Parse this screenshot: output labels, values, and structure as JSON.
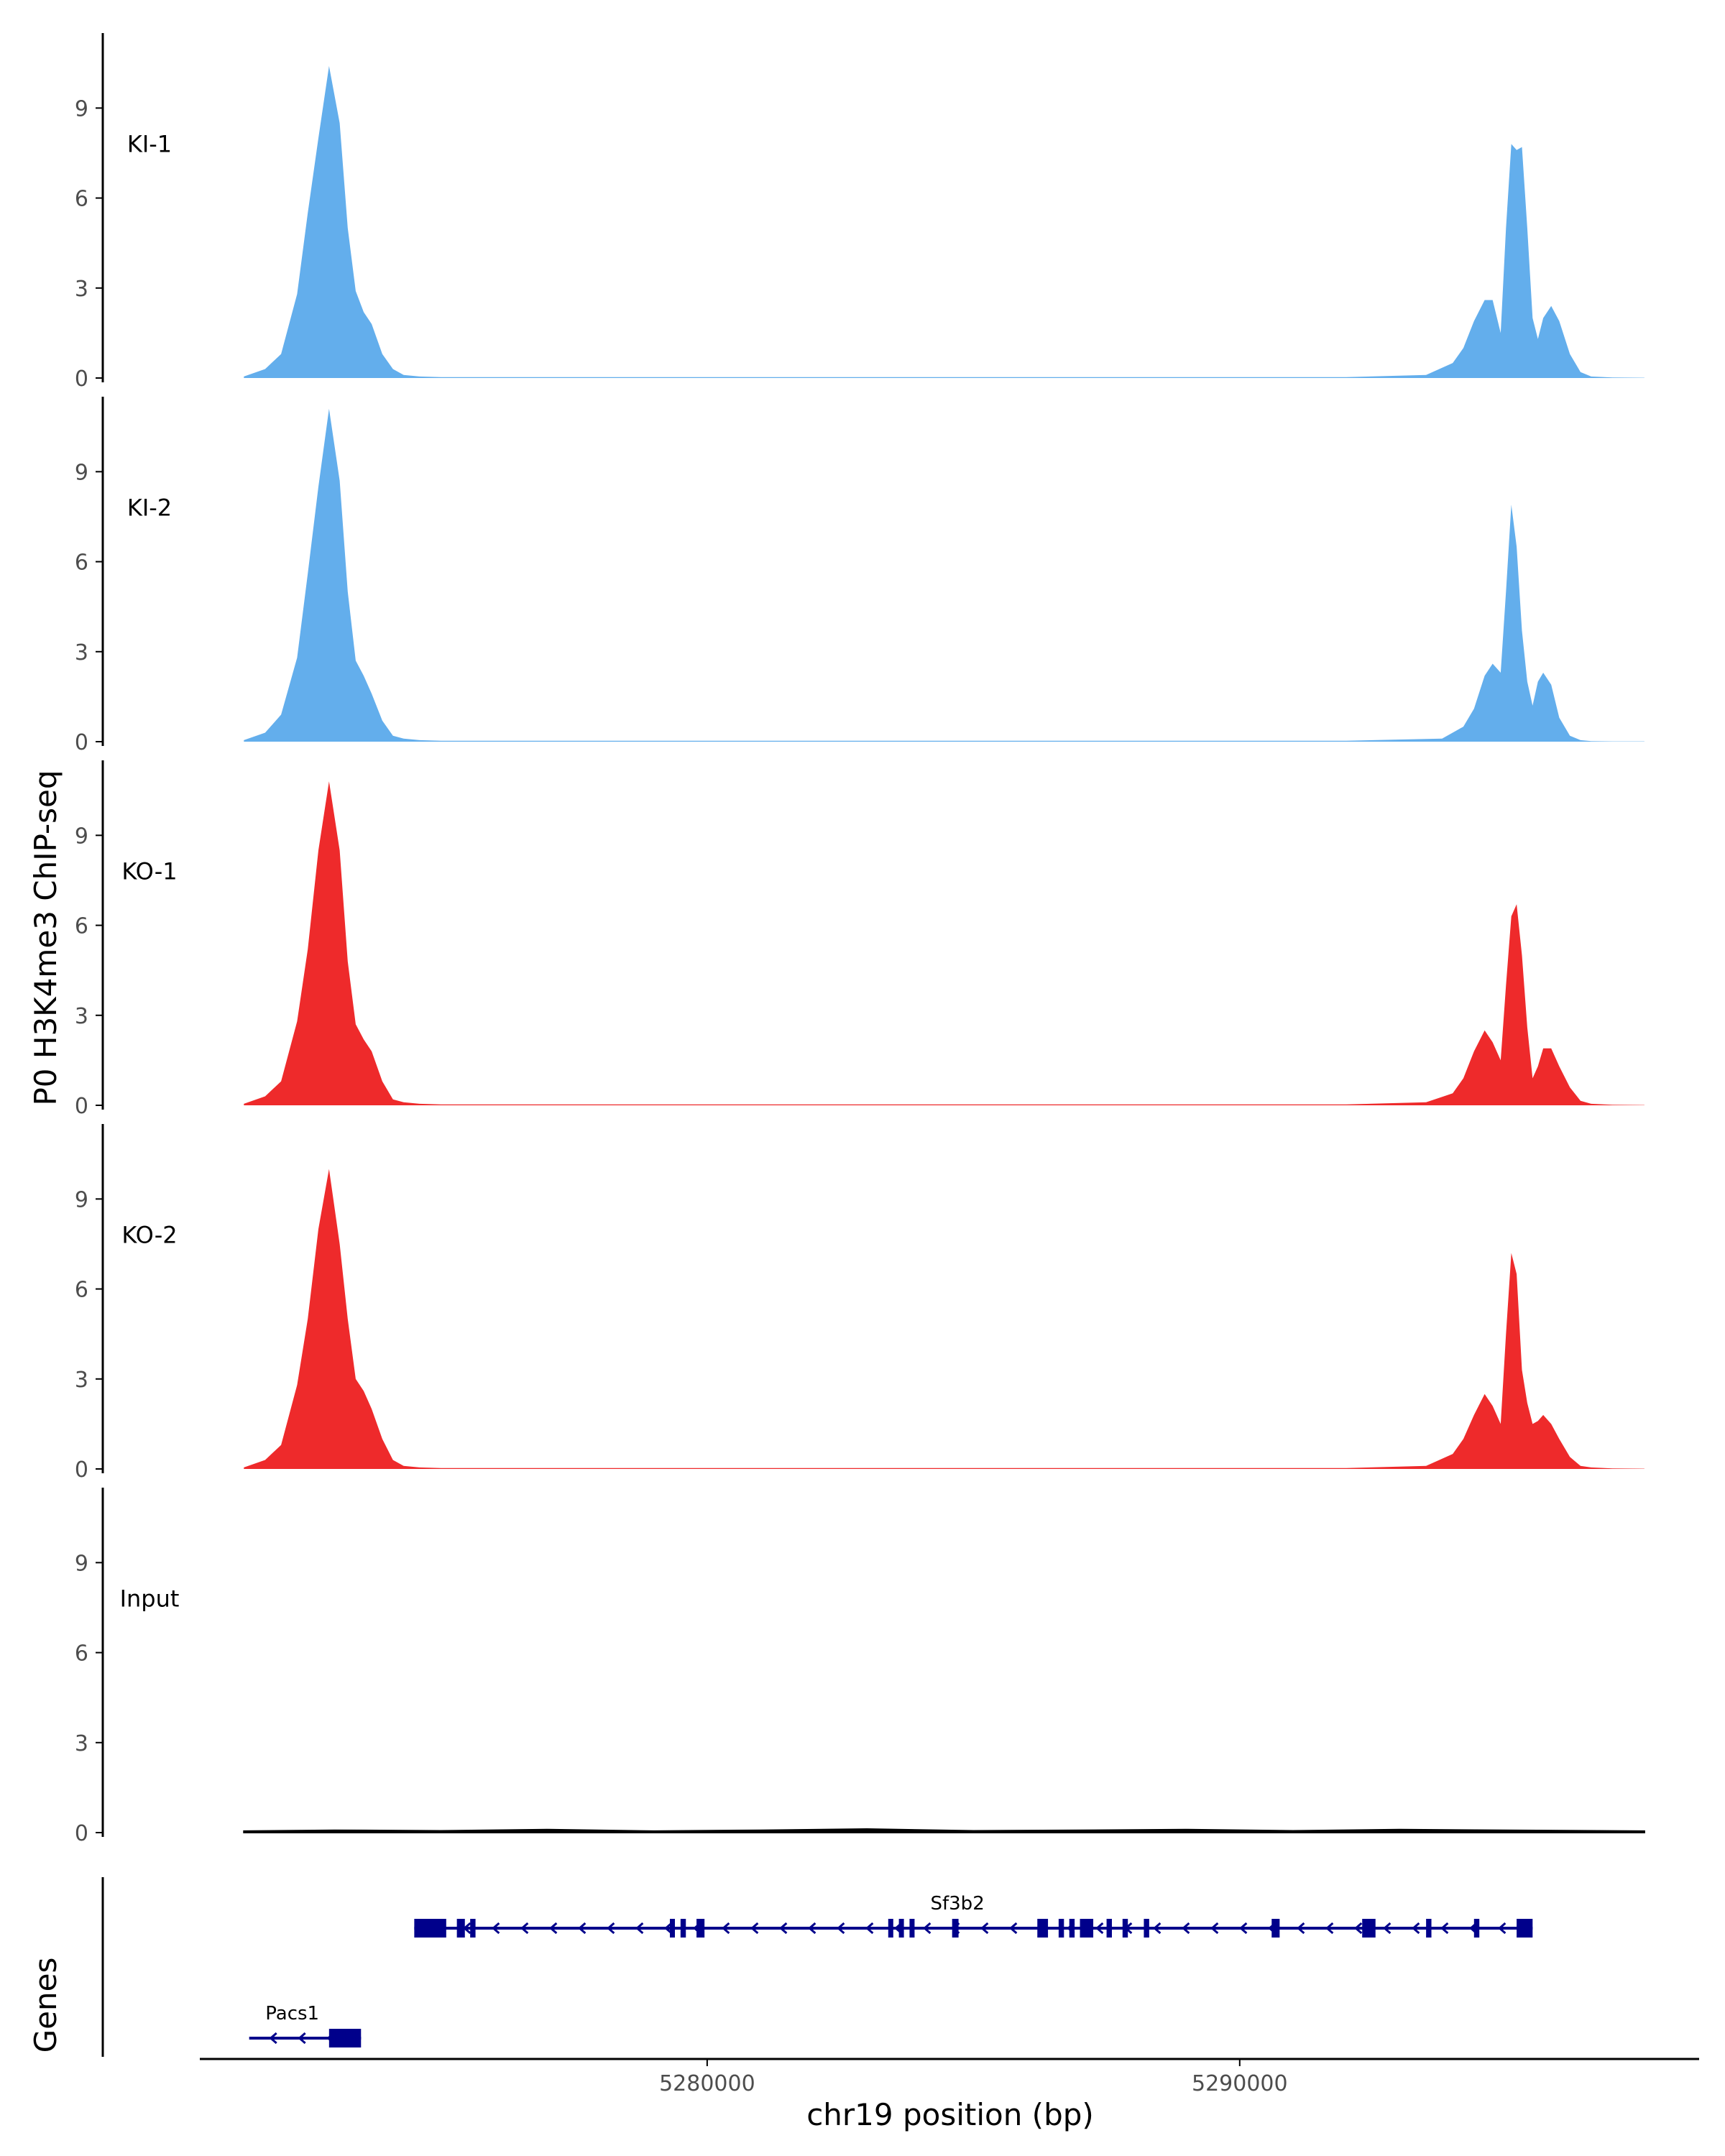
{
  "chart_data": {
    "type": "area",
    "title": "",
    "ylabel": "P0 H3K4me3 ChIP-seq",
    "genes_label": "Genes",
    "xlabel": "chr19 position (bp)",
    "xlim": [
      5270500,
      5298600
    ],
    "x_ticks": [
      {
        "value": 5280000,
        "label": "5280000"
      },
      {
        "value": 5290000,
        "label": "5290000"
      }
    ],
    "ylim": [
      0,
      11.5
    ],
    "y_ticks": [
      {
        "value": 0,
        "label": "0"
      },
      {
        "value": 3,
        "label": "3"
      },
      {
        "value": 6,
        "label": "6"
      },
      {
        "value": 9,
        "label": "9"
      }
    ],
    "colors": {
      "KI": "#63aeec",
      "KO": "#ee2a2b",
      "Input": "#000000",
      "gene": "#00008b",
      "axis": "#000000",
      "tick_text": "#4d4d4d"
    },
    "series": [
      {
        "name": "KI-1",
        "color": "#63aeec",
        "x": [
          5271300,
          5271700,
          5272000,
          5272300,
          5272500,
          5272700,
          5272900,
          5273100,
          5273250,
          5273400,
          5273550,
          5273700,
          5273900,
          5274100,
          5274300,
          5274600,
          5275000,
          5276000,
          5278000,
          5280000,
          5283000,
          5286000,
          5289000,
          5292000,
          5293500,
          5294000,
          5294200,
          5294400,
          5294600,
          5294750,
          5294900,
          5295000,
          5295100,
          5295200,
          5295300,
          5295400,
          5295500,
          5295600,
          5295700,
          5295850,
          5296000,
          5296200,
          5296400,
          5296600,
          5297000,
          5297600
        ],
        "y": [
          0.05,
          0.3,
          0.8,
          2.8,
          5.5,
          8.0,
          10.4,
          8.5,
          5.0,
          2.9,
          2.2,
          1.8,
          0.8,
          0.3,
          0.1,
          0.05,
          0.03,
          0.03,
          0.03,
          0.03,
          0.03,
          0.03,
          0.03,
          0.03,
          0.1,
          0.5,
          1.0,
          1.9,
          2.6,
          2.6,
          1.5,
          5.0,
          7.8,
          7.6,
          7.7,
          5.0,
          2.0,
          1.3,
          2.0,
          2.4,
          1.9,
          0.8,
          0.2,
          0.05,
          0.02,
          0.01
        ]
      },
      {
        "name": "KI-2",
        "color": "#63aeec",
        "x": [
          5271300,
          5271700,
          5272000,
          5272300,
          5272500,
          5272700,
          5272900,
          5273100,
          5273250,
          5273400,
          5273550,
          5273700,
          5273900,
          5274100,
          5274300,
          5274600,
          5275000,
          5276000,
          5278000,
          5280000,
          5283000,
          5286000,
          5289000,
          5292000,
          5293800,
          5294200,
          5294400,
          5294600,
          5294750,
          5294900,
          5295000,
          5295100,
          5295200,
          5295300,
          5295400,
          5295500,
          5295600,
          5295700,
          5295850,
          5296000,
          5296200,
          5296400,
          5296600,
          5297000,
          5297600
        ],
        "y": [
          0.05,
          0.3,
          0.9,
          2.8,
          5.6,
          8.5,
          11.1,
          8.7,
          5.0,
          2.7,
          2.2,
          1.6,
          0.7,
          0.2,
          0.1,
          0.05,
          0.03,
          0.03,
          0.03,
          0.03,
          0.03,
          0.03,
          0.03,
          0.03,
          0.1,
          0.5,
          1.1,
          2.2,
          2.6,
          2.3,
          5.0,
          7.9,
          6.5,
          3.7,
          2.0,
          1.2,
          2.0,
          2.3,
          1.9,
          0.8,
          0.2,
          0.05,
          0.02,
          0.01,
          0.01
        ]
      },
      {
        "name": "KO-1",
        "color": "#ee2a2b",
        "x": [
          5271300,
          5271700,
          5272000,
          5272300,
          5272500,
          5272700,
          5272900,
          5273100,
          5273250,
          5273400,
          5273550,
          5273700,
          5273900,
          5274100,
          5274300,
          5274600,
          5275000,
          5276000,
          5278000,
          5280000,
          5283000,
          5286000,
          5289000,
          5292000,
          5293500,
          5294000,
          5294200,
          5294400,
          5294600,
          5294750,
          5294900,
          5295000,
          5295100,
          5295200,
          5295300,
          5295400,
          5295500,
          5295600,
          5295700,
          5295850,
          5296000,
          5296200,
          5296400,
          5296600,
          5297000,
          5297600
        ],
        "y": [
          0.05,
          0.3,
          0.8,
          2.8,
          5.2,
          8.5,
          10.8,
          8.5,
          4.8,
          2.7,
          2.2,
          1.8,
          0.8,
          0.2,
          0.1,
          0.05,
          0.03,
          0.03,
          0.03,
          0.03,
          0.03,
          0.03,
          0.03,
          0.03,
          0.1,
          0.4,
          0.9,
          1.8,
          2.5,
          2.1,
          1.5,
          4.0,
          6.3,
          6.7,
          5.0,
          2.6,
          0.9,
          1.3,
          1.9,
          1.9,
          1.3,
          0.6,
          0.15,
          0.05,
          0.02,
          0.01
        ]
      },
      {
        "name": "KO-2",
        "color": "#ee2a2b",
        "x": [
          5271300,
          5271700,
          5272000,
          5272300,
          5272500,
          5272700,
          5272900,
          5273100,
          5273250,
          5273400,
          5273550,
          5273700,
          5273900,
          5274100,
          5274300,
          5274600,
          5275000,
          5276000,
          5278000,
          5280000,
          5283000,
          5286000,
          5289000,
          5292000,
          5293500,
          5294000,
          5294200,
          5294400,
          5294600,
          5294750,
          5294900,
          5295000,
          5295100,
          5295200,
          5295300,
          5295400,
          5295500,
          5295600,
          5295700,
          5295850,
          5296000,
          5296200,
          5296400,
          5296600,
          5297000,
          5297600
        ],
        "y": [
          0.05,
          0.3,
          0.8,
          2.8,
          5.0,
          8.0,
          10.0,
          7.5,
          5.0,
          3.0,
          2.6,
          2.0,
          1.0,
          0.3,
          0.1,
          0.05,
          0.03,
          0.03,
          0.03,
          0.03,
          0.03,
          0.03,
          0.03,
          0.03,
          0.1,
          0.5,
          1.0,
          1.8,
          2.5,
          2.1,
          1.5,
          4.5,
          7.2,
          6.5,
          3.3,
          2.2,
          1.5,
          1.6,
          1.8,
          1.5,
          1.0,
          0.4,
          0.1,
          0.05,
          0.02,
          0.01
        ]
      },
      {
        "name": "Input",
        "color": "#000000",
        "x": [
          5271300,
          5273000,
          5275000,
          5277000,
          5279000,
          5281000,
          5283000,
          5285000,
          5287000,
          5289000,
          5291000,
          5293000,
          5295000,
          5297600
        ],
        "y": [
          0.05,
          0.08,
          0.06,
          0.1,
          0.05,
          0.08,
          0.12,
          0.06,
          0.08,
          0.1,
          0.06,
          0.1,
          0.08,
          0.05
        ]
      }
    ],
    "genes": [
      {
        "name": "Sf3b2",
        "track": 1,
        "start": 5274500,
        "end": 5295500,
        "exons": [
          [
            5274500,
            5275100
          ],
          [
            5275300,
            5275450
          ],
          [
            5275550,
            5275650
          ],
          [
            5279300,
            5279380
          ],
          [
            5279500,
            5279600
          ],
          [
            5279800,
            5279950
          ],
          [
            5283400,
            5283480
          ],
          [
            5283600,
            5283680
          ],
          [
            5283800,
            5283880
          ],
          [
            5284600,
            5284720
          ],
          [
            5286200,
            5286400
          ],
          [
            5286600,
            5286700
          ],
          [
            5286800,
            5286900
          ],
          [
            5287000,
            5287250
          ],
          [
            5287500,
            5287600
          ],
          [
            5287800,
            5287900
          ],
          [
            5288200,
            5288300
          ],
          [
            5290600,
            5290750
          ],
          [
            5292300,
            5292550
          ],
          [
            5293500,
            5293600
          ],
          [
            5294400,
            5294500
          ],
          [
            5295200,
            5295500
          ]
        ]
      },
      {
        "name": "Pacs1",
        "track": 2,
        "start": 5271400,
        "end": 5273500,
        "exons": [
          [
            5272900,
            5273500
          ]
        ]
      }
    ]
  }
}
